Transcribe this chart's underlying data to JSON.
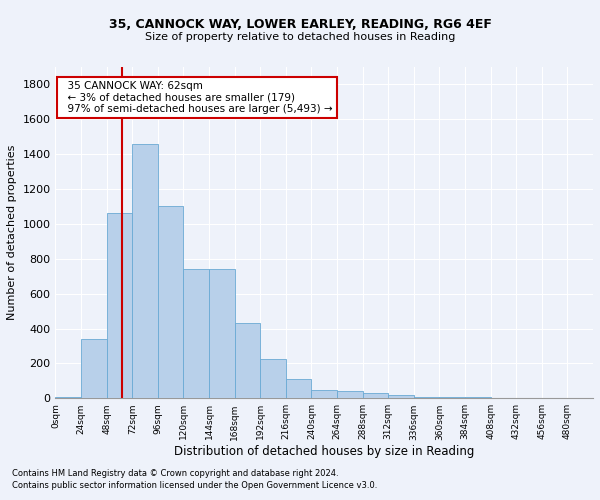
{
  "title_line1": "35, CANNOCK WAY, LOWER EARLEY, READING, RG6 4EF",
  "title_line2": "Size of property relative to detached houses in Reading",
  "xlabel": "Distribution of detached houses by size in Reading",
  "ylabel": "Number of detached properties",
  "bar_color": "#b8d0ea",
  "bar_edge_color": "#6aaad4",
  "bin_labels": [
    "0sqm",
    "24sqm",
    "48sqm",
    "72sqm",
    "96sqm",
    "120sqm",
    "144sqm",
    "168sqm",
    "192sqm",
    "216sqm",
    "240sqm",
    "264sqm",
    "288sqm",
    "312sqm",
    "336sqm",
    "360sqm",
    "384sqm",
    "408sqm",
    "432sqm",
    "456sqm",
    "480sqm"
  ],
  "bar_values": [
    10,
    340,
    1060,
    1460,
    1100,
    740,
    740,
    430,
    225,
    110,
    50,
    40,
    30,
    20,
    10,
    5,
    5,
    0,
    0,
    0,
    0
  ],
  "ylim": [
    0,
    1900
  ],
  "yticks": [
    0,
    200,
    400,
    600,
    800,
    1000,
    1200,
    1400,
    1600,
    1800
  ],
  "vline_x": 62,
  "vline_color": "#cc0000",
  "annotation_text": "  35 CANNOCK WAY: 62sqm\n  ← 3% of detached houses are smaller (179)\n  97% of semi-detached houses are larger (5,493) →",
  "annotation_box_color": "#ffffff",
  "annotation_box_edge": "#cc0000",
  "footnote1": "Contains HM Land Registry data © Crown copyright and database right 2024.",
  "footnote2": "Contains public sector information licensed under the Open Government Licence v3.0.",
  "background_color": "#eef2fa",
  "grid_color": "#ffffff",
  "bin_width": 24
}
